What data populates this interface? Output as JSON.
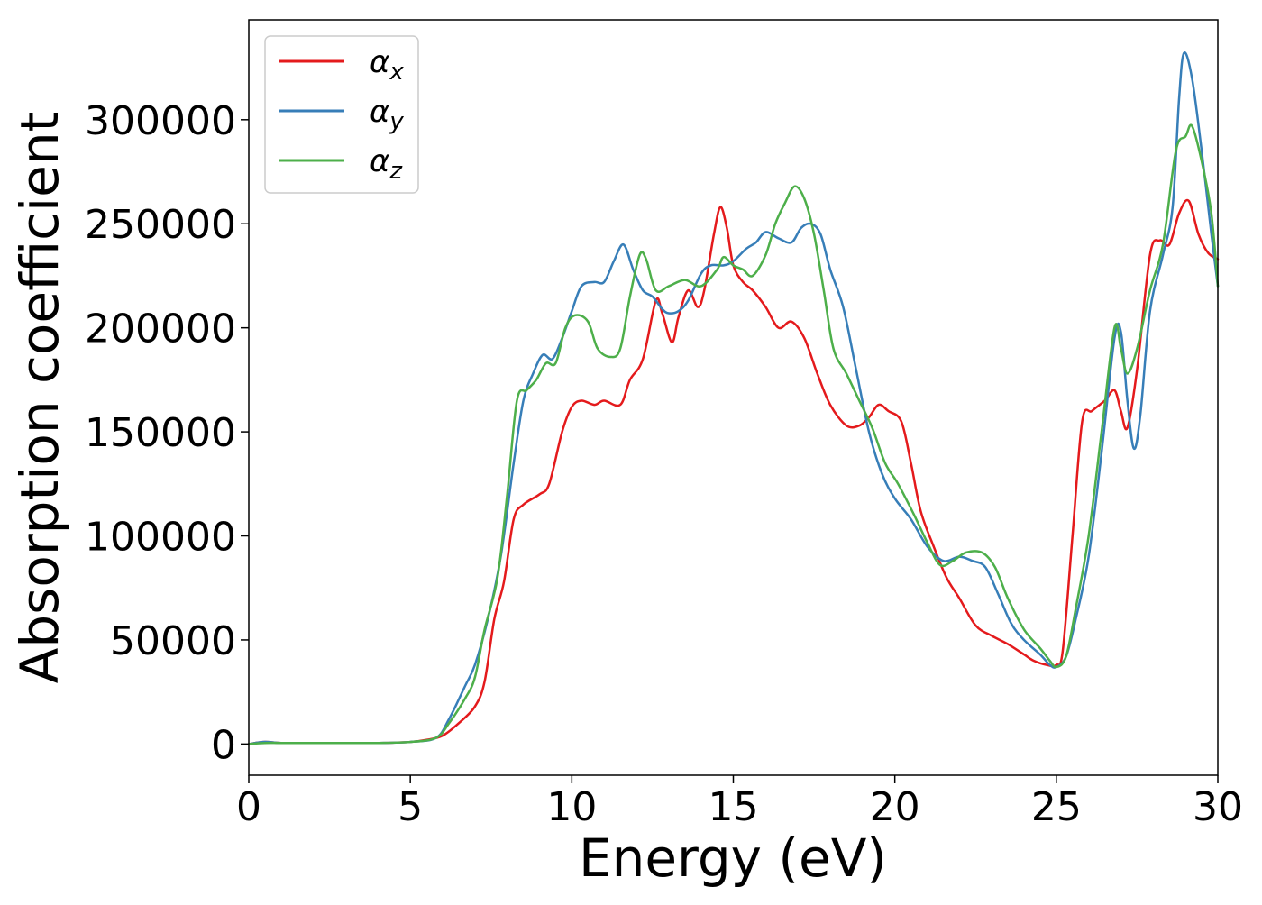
{
  "chart_data": {
    "type": "line",
    "xlabel": "Energy (eV)",
    "ylabel": "Absorption coefficient",
    "xlim": [
      0,
      30
    ],
    "ylim": [
      -15000,
      348000
    ],
    "xticks": [
      0,
      5,
      10,
      15,
      20,
      25,
      30
    ],
    "yticks": [
      0,
      50000,
      100000,
      150000,
      200000,
      250000,
      300000
    ],
    "grid": false,
    "legend_position": "top-left",
    "series": [
      {
        "name": "α",
        "subscript": "x",
        "color": "#e41a1c",
        "points": [
          [
            0,
            0
          ],
          [
            0.5,
            1000
          ],
          [
            1,
            500
          ],
          [
            2,
            500
          ],
          [
            3,
            500
          ],
          [
            4,
            500
          ],
          [
            5,
            1000
          ],
          [
            5.5,
            2000
          ],
          [
            6,
            4000
          ],
          [
            6.5,
            10000
          ],
          [
            7,
            18000
          ],
          [
            7.3,
            30000
          ],
          [
            7.6,
            60000
          ],
          [
            7.9,
            78000
          ],
          [
            8.2,
            108000
          ],
          [
            8.5,
            115000
          ],
          [
            9,
            120000
          ],
          [
            9.3,
            125000
          ],
          [
            9.7,
            150000
          ],
          [
            10,
            162000
          ],
          [
            10.3,
            165000
          ],
          [
            10.7,
            163000
          ],
          [
            11,
            165000
          ],
          [
            11.5,
            163000
          ],
          [
            11.8,
            175000
          ],
          [
            12.2,
            185000
          ],
          [
            12.6,
            213000
          ],
          [
            12.8,
            207000
          ],
          [
            13.1,
            193000
          ],
          [
            13.3,
            205000
          ],
          [
            13.6,
            218000
          ],
          [
            13.9,
            210000
          ],
          [
            14.1,
            218000
          ],
          [
            14.4,
            245000
          ],
          [
            14.6,
            258000
          ],
          [
            14.8,
            248000
          ],
          [
            15,
            230000
          ],
          [
            15.3,
            222000
          ],
          [
            15.6,
            218000
          ],
          [
            16,
            210000
          ],
          [
            16.4,
            200000
          ],
          [
            16.8,
            203000
          ],
          [
            17.2,
            195000
          ],
          [
            17.6,
            178000
          ],
          [
            18,
            163000
          ],
          [
            18.5,
            153000
          ],
          [
            18.9,
            153000
          ],
          [
            19.2,
            157000
          ],
          [
            19.5,
            163000
          ],
          [
            19.8,
            160000
          ],
          [
            20.2,
            155000
          ],
          [
            20.5,
            135000
          ],
          [
            20.8,
            112000
          ],
          [
            21.2,
            95000
          ],
          [
            21.6,
            80000
          ],
          [
            22,
            70000
          ],
          [
            22.5,
            57000
          ],
          [
            23,
            52000
          ],
          [
            23.5,
            48000
          ],
          [
            24,
            43000
          ],
          [
            24.3,
            40000
          ],
          [
            24.7,
            38000
          ],
          [
            25,
            38000
          ],
          [
            25.2,
            45000
          ],
          [
            25.5,
            100000
          ],
          [
            25.8,
            155000
          ],
          [
            26.1,
            160000
          ],
          [
            26.5,
            165000
          ],
          [
            26.8,
            170000
          ],
          [
            27,
            160000
          ],
          [
            27.2,
            152000
          ],
          [
            27.5,
            180000
          ],
          [
            27.9,
            235000
          ],
          [
            28.2,
            242000
          ],
          [
            28.5,
            240000
          ],
          [
            28.8,
            255000
          ],
          [
            29.1,
            261000
          ],
          [
            29.4,
            245000
          ],
          [
            29.7,
            236000
          ],
          [
            30,
            233000
          ]
        ]
      },
      {
        "name": "α",
        "subscript": "y",
        "color": "#377eb8",
        "points": [
          [
            0,
            0
          ],
          [
            0.5,
            1000
          ],
          [
            1,
            500
          ],
          [
            2,
            500
          ],
          [
            3,
            500
          ],
          [
            4,
            500
          ],
          [
            5,
            1000
          ],
          [
            5.8,
            3000
          ],
          [
            6.2,
            12000
          ],
          [
            6.7,
            28000
          ],
          [
            7,
            38000
          ],
          [
            7.4,
            60000
          ],
          [
            7.8,
            90000
          ],
          [
            8.2,
            135000
          ],
          [
            8.5,
            165000
          ],
          [
            8.8,
            178000
          ],
          [
            9.1,
            187000
          ],
          [
            9.4,
            185000
          ],
          [
            9.7,
            195000
          ],
          [
            10,
            208000
          ],
          [
            10.3,
            220000
          ],
          [
            10.7,
            222000
          ],
          [
            11,
            222000
          ],
          [
            11.3,
            232000
          ],
          [
            11.6,
            240000
          ],
          [
            11.9,
            228000
          ],
          [
            12.2,
            218000
          ],
          [
            12.5,
            215000
          ],
          [
            12.8,
            209000
          ],
          [
            13,
            207000
          ],
          [
            13.3,
            208000
          ],
          [
            13.6,
            213000
          ],
          [
            14,
            226000
          ],
          [
            14.3,
            230000
          ],
          [
            14.7,
            230000
          ],
          [
            15,
            232000
          ],
          [
            15.4,
            238000
          ],
          [
            15.7,
            241000
          ],
          [
            16,
            246000
          ],
          [
            16.4,
            243000
          ],
          [
            16.8,
            241000
          ],
          [
            17.1,
            248000
          ],
          [
            17.4,
            250000
          ],
          [
            17.7,
            245000
          ],
          [
            18,
            228000
          ],
          [
            18.4,
            210000
          ],
          [
            18.8,
            180000
          ],
          [
            19.2,
            150000
          ],
          [
            19.6,
            130000
          ],
          [
            20,
            118000
          ],
          [
            20.5,
            108000
          ],
          [
            21,
            95000
          ],
          [
            21.5,
            88000
          ],
          [
            22,
            90000
          ],
          [
            22.4,
            88000
          ],
          [
            22.8,
            85000
          ],
          [
            23.2,
            72000
          ],
          [
            23.6,
            58000
          ],
          [
            24,
            50000
          ],
          [
            24.5,
            43000
          ],
          [
            24.8,
            38000
          ],
          [
            25,
            37000
          ],
          [
            25.3,
            42000
          ],
          [
            25.6,
            60000
          ],
          [
            26,
            90000
          ],
          [
            26.4,
            140000
          ],
          [
            26.8,
            195000
          ],
          [
            27,
            198000
          ],
          [
            27.2,
            165000
          ],
          [
            27.4,
            142000
          ],
          [
            27.6,
            158000
          ],
          [
            27.9,
            208000
          ],
          [
            28.3,
            235000
          ],
          [
            28.6,
            258000
          ],
          [
            28.8,
            310000
          ],
          [
            28.95,
            332000
          ],
          [
            29.2,
            320000
          ],
          [
            29.5,
            285000
          ],
          [
            29.8,
            245000
          ],
          [
            30,
            220000
          ]
        ]
      },
      {
        "name": "α",
        "subscript": "z",
        "color": "#4daf4a",
        "points": [
          [
            0,
            0
          ],
          [
            0.5,
            500
          ],
          [
            1,
            500
          ],
          [
            2,
            500
          ],
          [
            3,
            500
          ],
          [
            4,
            500
          ],
          [
            5,
            1000
          ],
          [
            5.8,
            3000
          ],
          [
            6.2,
            10000
          ],
          [
            6.7,
            22000
          ],
          [
            7,
            32000
          ],
          [
            7.3,
            55000
          ],
          [
            7.7,
            80000
          ],
          [
            8,
            120000
          ],
          [
            8.3,
            165000
          ],
          [
            8.6,
            170000
          ],
          [
            8.9,
            175000
          ],
          [
            9.2,
            183000
          ],
          [
            9.5,
            183000
          ],
          [
            9.8,
            200000
          ],
          [
            10.1,
            206000
          ],
          [
            10.5,
            203000
          ],
          [
            10.8,
            190000
          ],
          [
            11.2,
            186000
          ],
          [
            11.5,
            190000
          ],
          [
            11.8,
            215000
          ],
          [
            12.1,
            235000
          ],
          [
            12.3,
            233000
          ],
          [
            12.6,
            218000
          ],
          [
            13,
            220000
          ],
          [
            13.5,
            223000
          ],
          [
            14,
            220000
          ],
          [
            14.5,
            228000
          ],
          [
            14.7,
            234000
          ],
          [
            15,
            230000
          ],
          [
            15.3,
            228000
          ],
          [
            15.6,
            225000
          ],
          [
            16,
            235000
          ],
          [
            16.3,
            250000
          ],
          [
            16.6,
            260000
          ],
          [
            16.9,
            268000
          ],
          [
            17.2,
            262000
          ],
          [
            17.5,
            245000
          ],
          [
            17.8,
            218000
          ],
          [
            18.1,
            190000
          ],
          [
            18.5,
            178000
          ],
          [
            18.9,
            165000
          ],
          [
            19.3,
            152000
          ],
          [
            19.7,
            135000
          ],
          [
            20.1,
            125000
          ],
          [
            20.6,
            110000
          ],
          [
            21,
            97000
          ],
          [
            21.4,
            86000
          ],
          [
            21.8,
            88000
          ],
          [
            22.2,
            92000
          ],
          [
            22.7,
            92000
          ],
          [
            23.1,
            85000
          ],
          [
            23.5,
            70000
          ],
          [
            24,
            55000
          ],
          [
            24.5,
            46000
          ],
          [
            24.8,
            40000
          ],
          [
            25,
            37000
          ],
          [
            25.3,
            42000
          ],
          [
            25.6,
            65000
          ],
          [
            26,
            100000
          ],
          [
            26.4,
            150000
          ],
          [
            26.8,
            200000
          ],
          [
            27,
            190000
          ],
          [
            27.2,
            178000
          ],
          [
            27.5,
            190000
          ],
          [
            27.9,
            218000
          ],
          [
            28.3,
            240000
          ],
          [
            28.7,
            285000
          ],
          [
            29,
            292000
          ],
          [
            29.2,
            297000
          ],
          [
            29.5,
            280000
          ],
          [
            29.8,
            255000
          ],
          [
            30,
            220000
          ]
        ]
      }
    ]
  }
}
